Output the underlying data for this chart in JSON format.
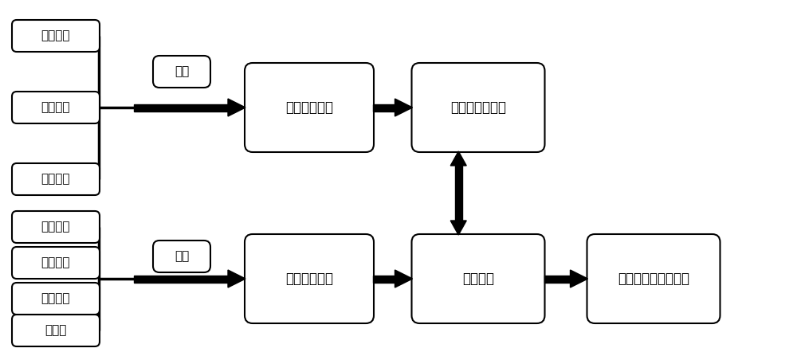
{
  "background_color": "#ffffff",
  "fig_width": 10.0,
  "fig_height": 4.42,
  "top_small_labels": [
    "用电设备",
    "人员安排",
    "作息时间"
  ],
  "bot_small_labels": [
    "建筑朝向",
    "墙体热阻",
    "窗户热阻",
    "窗墙比"
  ],
  "jz_label": "基准",
  "xz_label": "修正",
  "box1_label": "运行属性参数",
  "box2_label": "确定建筑的功能",
  "box3_label": "自有属性参数",
  "box4_label": "耦合影响",
  "box5_label": "建立最终的数学模型",
  "font_size": 11,
  "box_edge_color": "#000000",
  "box_face_color": "#ffffff",
  "line_color": "#000000",
  "lw": 1.5
}
